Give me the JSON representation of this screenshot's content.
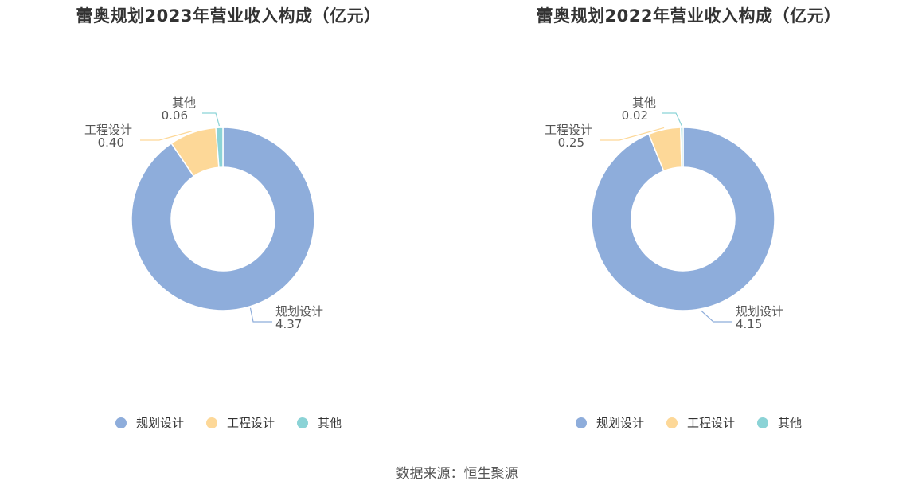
{
  "colors": {
    "规划设计": "#8eaddb",
    "工程设计": "#fdd898",
    "其他": "#8bd3d6"
  },
  "chart_data": [
    {
      "type": "pie",
      "title": "蕾奥规划2023年营业收入构成（亿元）",
      "categories": [
        "规划设计",
        "工程设计",
        "其他"
      ],
      "values": [
        4.37,
        0.4,
        0.06
      ],
      "value_labels": [
        "4.37",
        "0.40",
        "0.06"
      ],
      "donut": true,
      "legend": "bottom"
    },
    {
      "type": "pie",
      "title": "蕾奥规划2022年营业收入构成（亿元）",
      "categories": [
        "规划设计",
        "工程设计",
        "其他"
      ],
      "values": [
        4.15,
        0.25,
        0.02
      ],
      "value_labels": [
        "4.15",
        "0.25",
        "0.02"
      ],
      "donut": true,
      "legend": "bottom"
    }
  ],
  "source": "数据来源：恒生聚源"
}
